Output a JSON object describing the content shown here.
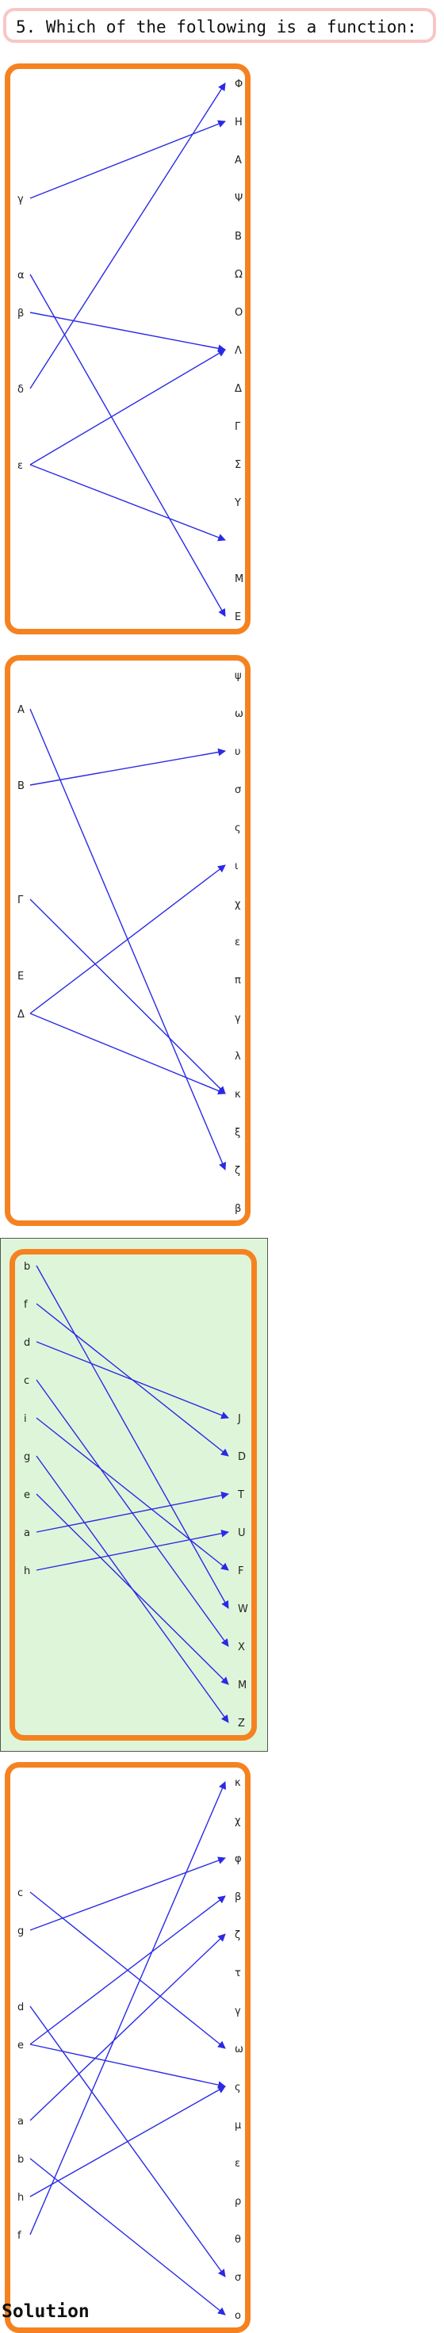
{
  "question": {
    "text": "5. Which of the following is a function:"
  },
  "solution_label": "Solution",
  "colors": {
    "frame": "#f58220",
    "arrow": "#2a2ae6",
    "highlight": "#dff5d9"
  },
  "diagrams": [
    {
      "domain": [
        "γ",
        "α",
        "β",
        "δ",
        "ε"
      ],
      "codomain": [
        "Φ",
        "Η",
        "Α",
        "Ψ",
        "Β",
        "Ω",
        "Ο",
        "Λ",
        "Δ",
        "Γ",
        "Σ",
        "Υ",
        "",
        "Μ",
        "Ε"
      ],
      "mapping": [
        [
          "γ",
          "Η"
        ],
        [
          "α",
          "Ε"
        ],
        [
          "β",
          "Λ"
        ],
        [
          "δ",
          "Φ"
        ],
        [
          "ε",
          "Λ"
        ],
        [
          "ε",
          ""
        ]
      ],
      "highlighted": false
    },
    {
      "domain": [
        "Α",
        "Β",
        "Γ",
        "Ε",
        "Δ"
      ],
      "codomain": [
        "ψ",
        "ω",
        "υ",
        "σ",
        "ς",
        "ι",
        "χ",
        "ε",
        "π",
        "γ",
        "λ",
        "κ",
        "ξ",
        "ζ",
        "β"
      ],
      "mapping": [
        [
          "Α",
          "ζ"
        ],
        [
          "Β",
          "υ"
        ],
        [
          "Γ",
          "κ"
        ],
        [
          "Δ",
          "ι"
        ],
        [
          "Δ",
          "κ"
        ]
      ],
      "highlighted": false
    },
    {
      "domain": [
        "b",
        "f",
        "d",
        "c",
        "i",
        "g",
        "e",
        "a",
        "h"
      ],
      "codomain": [
        "J",
        "D",
        "T",
        "U",
        "F",
        "W",
        "X",
        "M",
        "Z"
      ],
      "mapping": [
        [
          "b",
          "W"
        ],
        [
          "f",
          "D"
        ],
        [
          "d",
          "J"
        ],
        [
          "c",
          "X"
        ],
        [
          "i",
          "F"
        ],
        [
          "g",
          "Z"
        ],
        [
          "e",
          "M"
        ],
        [
          "a",
          "T"
        ],
        [
          "h",
          "U"
        ]
      ],
      "highlighted": true
    },
    {
      "domain": [
        "c",
        "g",
        "d",
        "e",
        "a",
        "b",
        "h",
        "f"
      ],
      "codomain": [
        "κ",
        "χ",
        "φ",
        "β",
        "ζ",
        "τ",
        "γ",
        "ω",
        "ς",
        "μ",
        "ε",
        "ρ",
        "θ",
        "σ",
        "ο"
      ],
      "mapping": [
        [
          "c",
          "ω"
        ],
        [
          "g",
          "φ"
        ],
        [
          "d",
          "σ"
        ],
        [
          "e",
          "β"
        ],
        [
          "e",
          "ς"
        ],
        [
          "a",
          "ζ"
        ],
        [
          "b",
          "ο"
        ],
        [
          "h",
          "ς"
        ],
        [
          "f",
          "κ"
        ]
      ],
      "highlighted": false
    }
  ]
}
